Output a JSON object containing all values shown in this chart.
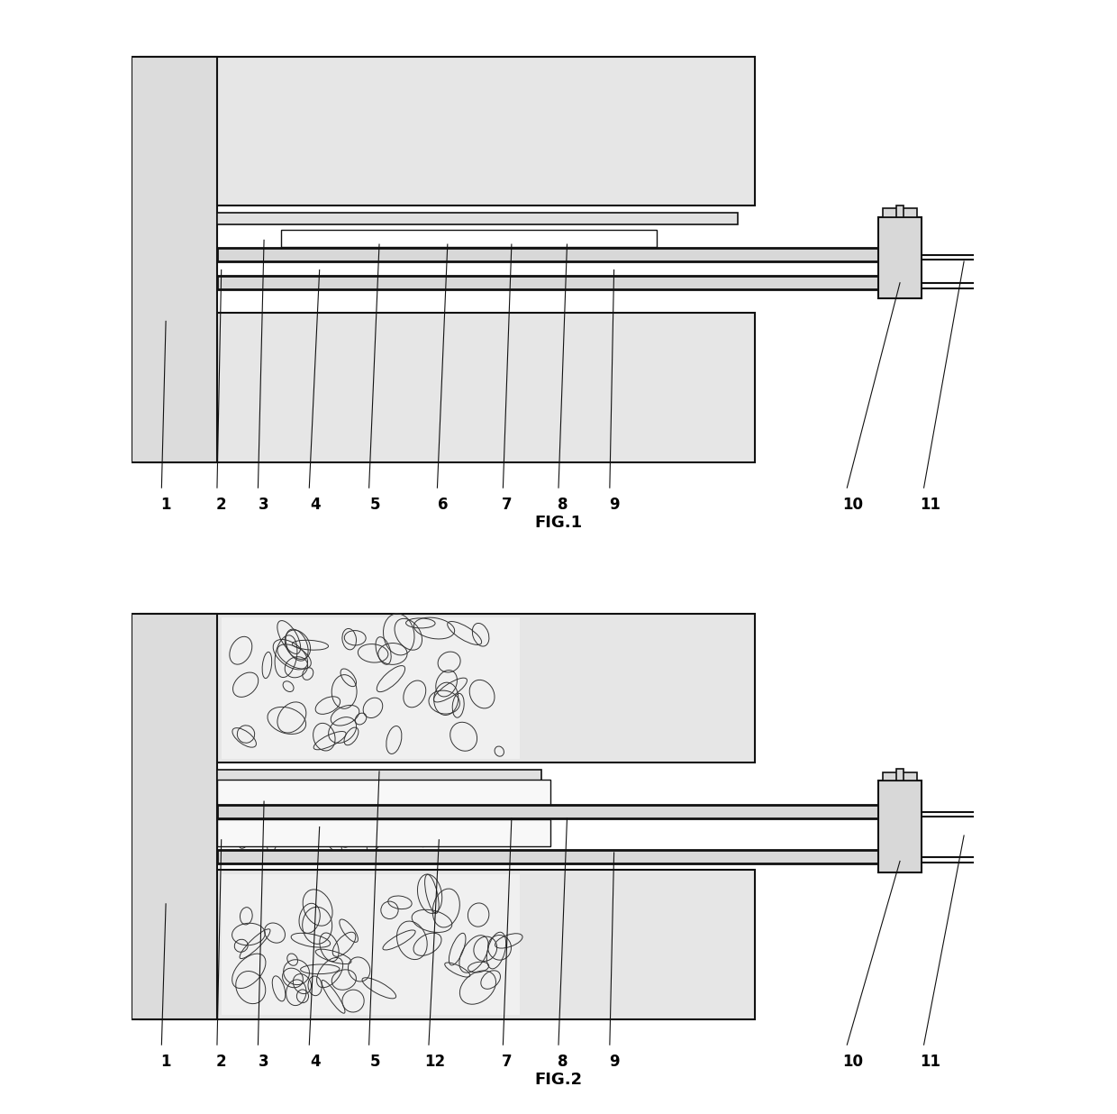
{
  "bg_color": "#ffffff",
  "fig1_title": "FIG.1",
  "fig2_title": "FIG.2",
  "labels_fig1": [
    "1",
    "2",
    "3",
    "4",
    "5",
    "6",
    "7",
    "8",
    "9",
    "10",
    "11"
  ],
  "labels_fig2": [
    "1",
    "2",
    "3",
    "4",
    "5",
    "12",
    "7",
    "8",
    "9",
    "10",
    "11"
  ]
}
